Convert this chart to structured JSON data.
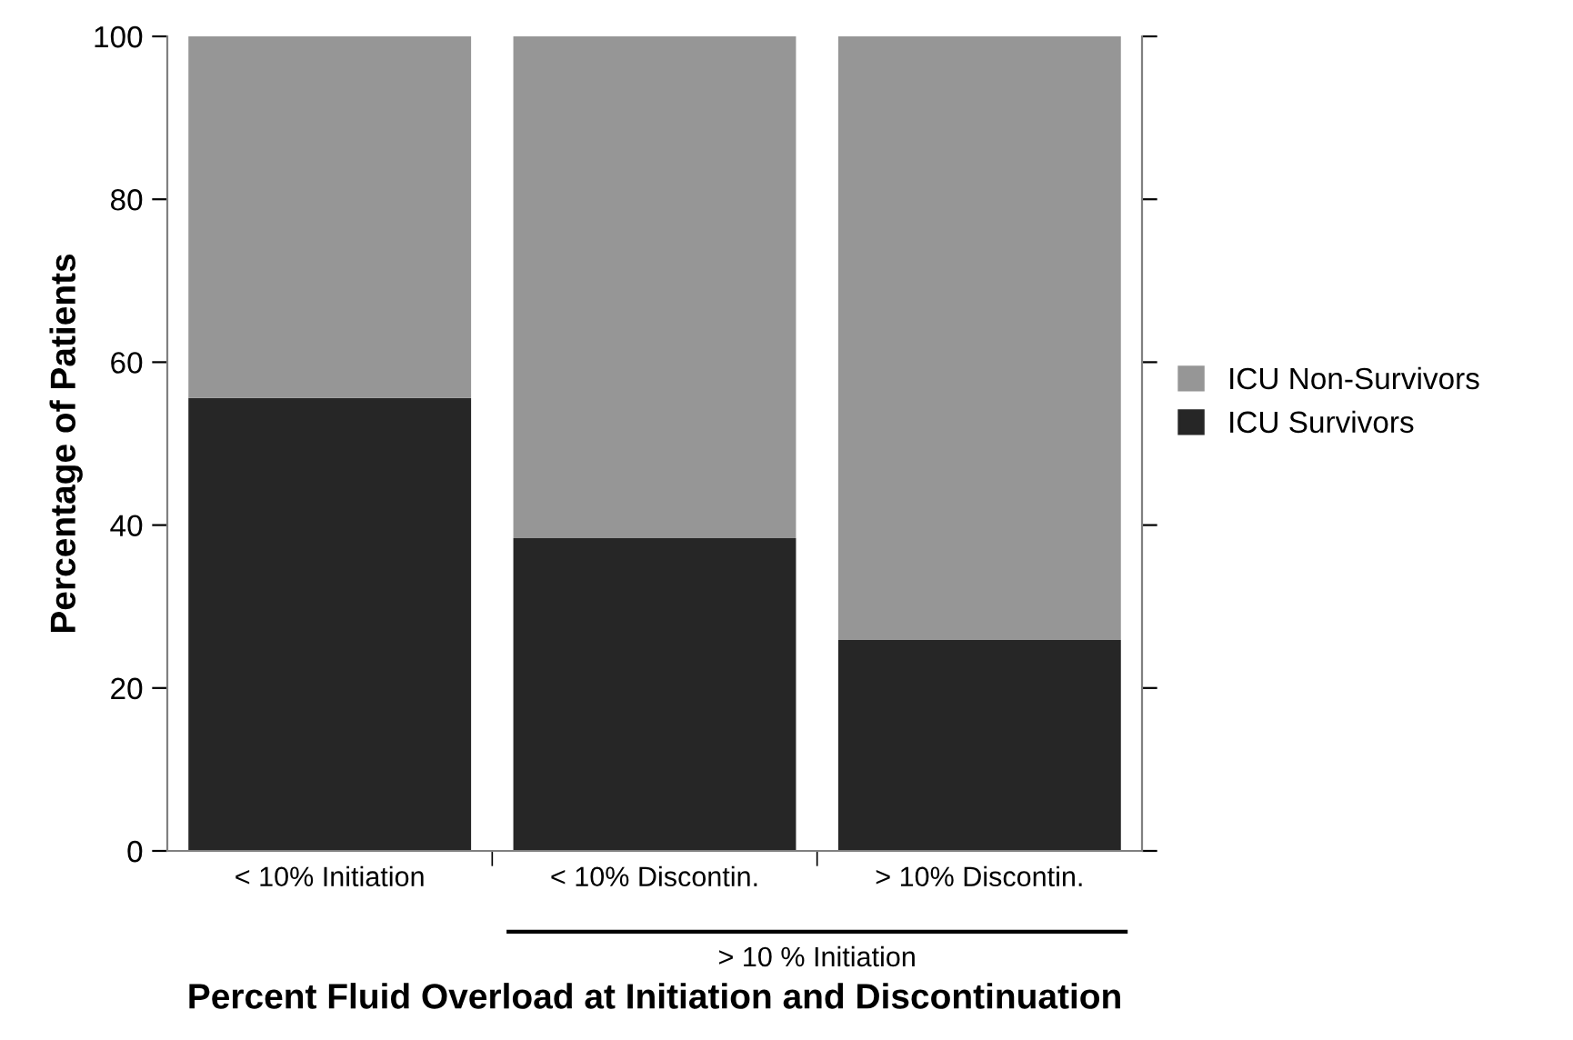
{
  "chart_data": {
    "type": "bar",
    "stacked": true,
    "xlabel": "Percent Fluid Overload at Initiation and Discontinuation",
    "ylabel": "Percentage of Patients",
    "categories": [
      "< 10% Initiation",
      "< 10% Discontin.",
      "> 10% Discontin."
    ],
    "series": [
      {
        "name": "ICU Survivors",
        "color": "#262626",
        "values": [
          55.6,
          38.4,
          25.9
        ]
      },
      {
        "name": "ICU Non-Survivors",
        "color": "#969696",
        "values": [
          44.4,
          61.6,
          74.1
        ]
      }
    ],
    "ylim": [
      0,
      100
    ],
    "yticks": [
      0,
      20,
      40,
      60,
      80,
      100
    ],
    "grid": false,
    "legend": "right",
    "annotations": [
      "> 10 % Initiation"
    ]
  }
}
